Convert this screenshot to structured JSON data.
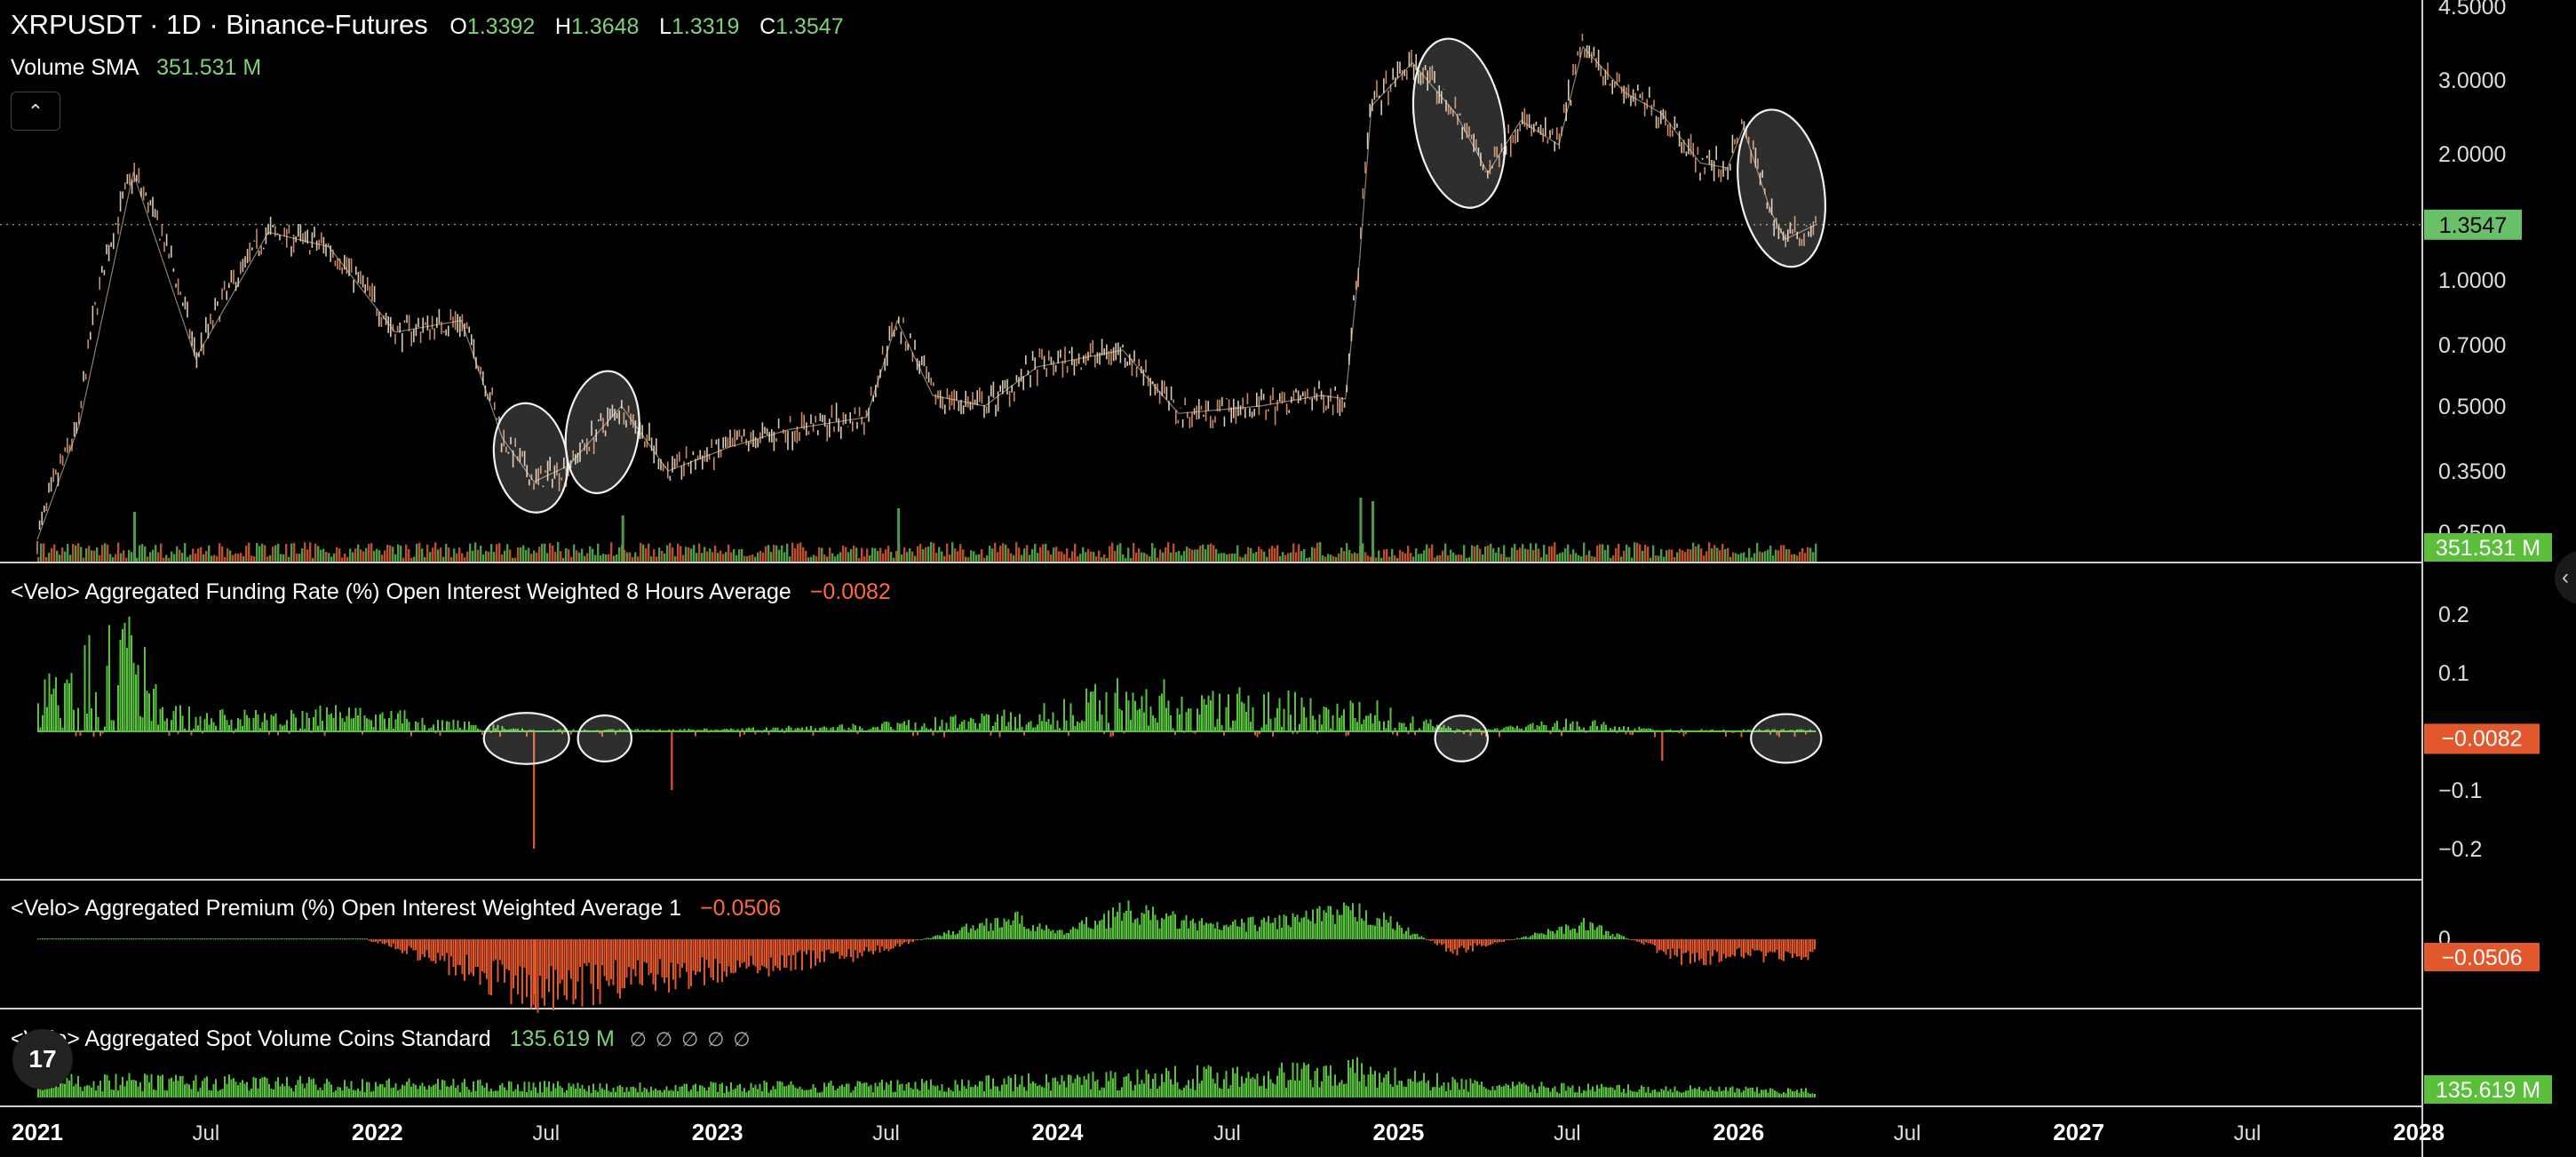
{
  "header": {
    "symbol": "XRPUSDT · 1D · Binance-Futures",
    "open": "1.3392",
    "high": "1.3648",
    "low": "1.3319",
    "close": "1.3547",
    "volume_label": "Volume SMA",
    "volume_value": "351.531 M",
    "collapse_icon": "chevron-up-icon"
  },
  "panes": {
    "funding": {
      "title": "<Velo> Aggregated Funding Rate (%) Open Interest Weighted 8 Hours Average",
      "value": "−0.0082"
    },
    "premium": {
      "title": "<Velo> Aggregated Premium (%) Open Interest Weighted Average 1",
      "value": "−0.0506"
    },
    "spot": {
      "title": "<Velo> Aggregated Spot Volume Coins Standard",
      "value": "135.619 M",
      "tags": "∅∅∅∅∅"
    }
  },
  "logo_text": "17",
  "colors": {
    "up": "#7fd17a",
    "down": "#ff6a3d",
    "price_badge": "#6abf69",
    "neg_badge": "#e2572b",
    "axis_text": "#dddddd"
  },
  "chart_data": [
    {
      "type": "line",
      "title": "XRPUSDT · 1D · Binance-Futures",
      "scale": "log",
      "x": [
        "2021-01-01",
        "2021-02-15",
        "2021-04-14",
        "2021-06-20",
        "2021-09-06",
        "2021-11-10",
        "2022-01-20",
        "2022-04-01",
        "2022-05-15",
        "2022-06-18",
        "2022-07-25",
        "2022-09-20",
        "2022-11-09",
        "2023-01-15",
        "2023-03-20",
        "2023-06-10",
        "2023-07-13",
        "2023-08-20",
        "2023-10-15",
        "2023-12-10",
        "2024-03-11",
        "2024-05-10",
        "2024-08-05",
        "2024-10-10",
        "2024-11-05",
        "2024-11-20",
        "2024-12-03",
        "2025-01-16",
        "2025-03-03",
        "2025-04-07",
        "2025-05-12",
        "2025-06-22",
        "2025-07-18",
        "2025-09-01",
        "2025-10-10",
        "2025-11-21",
        "2025-12-20",
        "2026-01-06",
        "2026-02-05",
        "2026-02-20",
        "2026-03-25"
      ],
      "y": [
        0.24,
        0.45,
        1.8,
        0.65,
        1.3,
        1.2,
        0.75,
        0.8,
        0.42,
        0.33,
        0.36,
        0.5,
        0.35,
        0.4,
        0.44,
        0.47,
        0.8,
        0.53,
        0.5,
        0.62,
        0.68,
        0.48,
        0.5,
        0.53,
        0.52,
        1.1,
        2.6,
        3.3,
        2.5,
        1.8,
        2.4,
        2.1,
        3.6,
        2.8,
        2.5,
        1.9,
        1.85,
        2.3,
        1.45,
        1.25,
        1.3547
      ],
      "last_price": "1.3547",
      "last_volume": "351.531 M",
      "y_ticks": [
        "4.5000",
        "3.0000",
        "2.0000",
        "1.0000",
        "0.7000",
        "0.5000",
        "0.3500",
        "0.2500"
      ],
      "volume": {
        "type": "bar",
        "x": [
          "2021-04-14",
          "2022-09-20",
          "2023-07-13",
          "2024-11-20",
          "2024-12-03"
        ],
        "values": [
          1400,
          1300,
          1500,
          1800,
          1700
        ],
        "unit": "M"
      },
      "highlights": [
        "2022-05-20 to 2022-07-10",
        "2022-08-05 to 2022-09-25",
        "2025-02-01 to 2025-04-10",
        "2026-01-15 to 2026-03-20"
      ]
    },
    {
      "type": "bar",
      "title": "<Velo> Aggregated Funding Rate (%) Open Interest Weighted 8 Hours Average",
      "x": [
        "2021-01-15",
        "2021-02-20",
        "2021-04-14",
        "2021-05-20",
        "2021-09-05",
        "2021-11-10",
        "2022-03-10",
        "2022-06-17",
        "2022-09-05",
        "2022-11-12",
        "2023-06-10",
        "2023-12-15",
        "2024-03-10",
        "2024-12-05",
        "2025-03-10",
        "2025-07-20",
        "2025-10-10",
        "2026-02-20",
        "2026-03-25"
      ],
      "values": [
        0.09,
        0.15,
        0.18,
        0.04,
        0.03,
        0.05,
        0.02,
        -0.2,
        -0.02,
        -0.1,
        0.01,
        0.04,
        0.09,
        0.05,
        -0.02,
        0.02,
        -0.05,
        -0.02,
        -0.0082
      ],
      "y_ticks": [
        "0.2",
        "0.1",
        "−0.1",
        "−0.2"
      ],
      "ylim": [
        -0.24,
        0.26
      ],
      "last_value": "−0.0082",
      "highlights": [
        "2022-05-01 to 2022-07-20",
        "2022-08-10 to 2022-09-25",
        "2025-02-15 to 2025-04-01",
        "2026-01-20 to 2026-03-25"
      ]
    },
    {
      "type": "bar",
      "title": "<Velo> Aggregated Premium (%) Open Interest Weighted Average 1",
      "x": [
        "2021-06-01",
        "2022-01-01",
        "2022-06-17",
        "2022-11-10",
        "2023-06-01",
        "2023-11-10",
        "2024-01-01",
        "2024-03-10",
        "2024-06-20",
        "2024-11-25",
        "2025-03-01",
        "2025-07-20",
        "2025-11-01",
        "2026-03-25"
      ],
      "values": [
        0.002,
        -0.01,
        -0.17,
        -0.12,
        -0.05,
        0.07,
        0.02,
        0.09,
        0.04,
        0.09,
        -0.04,
        0.05,
        -0.06,
        -0.0506
      ],
      "y_ticks": [
        "0"
      ],
      "last_value": "−0.0506"
    },
    {
      "type": "bar",
      "title": "<Velo> Aggregated Spot Volume Coins Standard",
      "x": [
        "2021-04-14",
        "2022-09-20",
        "2023-07-13",
        "2024-11-20",
        "2024-12-03",
        "2025-04-07",
        "2026-03-25"
      ],
      "values": [
        420,
        260,
        300,
        720,
        600,
        280,
        135.619
      ],
      "unit": "M",
      "last_value": "135.619 M"
    }
  ],
  "x_axis": {
    "labels": [
      "2021",
      "Jul",
      "2022",
      "Jul",
      "2023",
      "Jul",
      "2024",
      "Jul",
      "2025",
      "Jul",
      "2026",
      "Jul",
      "2027",
      "Jul",
      "2028"
    ],
    "major": [
      true,
      false,
      true,
      false,
      true,
      false,
      true,
      false,
      true,
      false,
      true,
      false,
      true,
      false,
      true
    ]
  }
}
